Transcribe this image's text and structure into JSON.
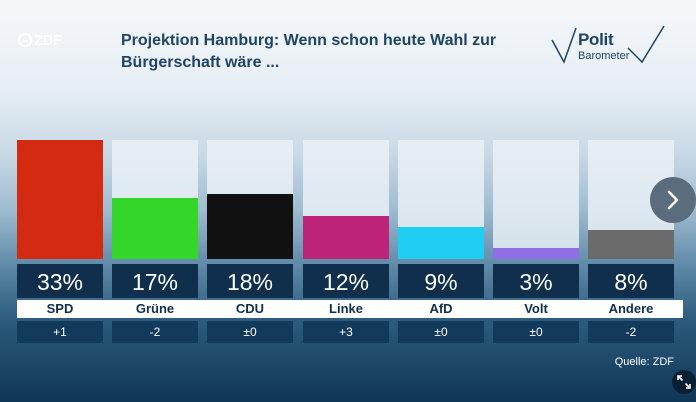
{
  "header": {
    "logo_text": "ZDF",
    "title_line1": "Projektion Hamburg: Wenn schon heute Wahl zur",
    "title_line2": "Bürgerschaft wäre ...",
    "brand_top": "Polit",
    "brand_bottom": "Barometer"
  },
  "chart_data": {
    "type": "bar",
    "title": "Projektion Hamburg: Wenn schon heute Wahl zur Bürgerschaft wäre ...",
    "categories": [
      "SPD",
      "Grüne",
      "CDU",
      "Linke",
      "AfD",
      "Volt",
      "Andere"
    ],
    "values": [
      33,
      17,
      18,
      12,
      9,
      3,
      8
    ],
    "value_labels": [
      "33%",
      "17%",
      "18%",
      "12%",
      "9%",
      "3%",
      "8%"
    ],
    "changes": [
      "+1",
      "-2",
      "±0",
      "+3",
      "±0",
      "±0",
      "-2"
    ],
    "colors": [
      "#d42a12",
      "#33d629",
      "#111111",
      "#bd2376",
      "#20cdf3",
      "#8f6ee6",
      "#6b6b6b"
    ],
    "ylim": [
      0,
      33
    ],
    "grid": false
  },
  "footer": {
    "source": "Quelle: ZDF"
  },
  "icons": {
    "next": "chevron-right-icon",
    "expand": "expand-icon"
  }
}
